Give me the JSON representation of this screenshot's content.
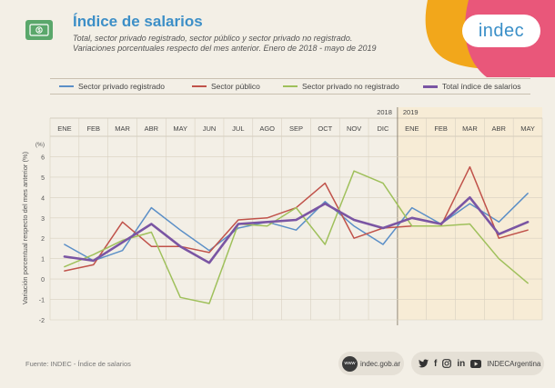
{
  "header": {
    "icon": "money-bill-icon",
    "title": "Índice de salarios",
    "subtitle_1": "Total, sector privado registrado, sector público y sector privado no registrado.",
    "subtitle_2": "Variaciones porcentuales respecto del mes anterior. Enero de 2018 - mayo de 2019"
  },
  "logo": {
    "text": "indec"
  },
  "colors": {
    "background": "#f3efe6",
    "highlight_2019": "#f7ecd6",
    "privado_registrado": "#5b8fc7",
    "publico": "#c0524a",
    "no_registrado": "#9fc05b",
    "total": "#7a55a3",
    "logo_orange": "#f2a71b",
    "logo_pink": "#e9577a",
    "title_blue": "#3d8fc7"
  },
  "footer": {
    "source": "Fuente: INDEC - Índice de salarios",
    "website": "indec.gob.ar",
    "www_label": "www",
    "social_handle": "INDECArgentina",
    "social_icons": [
      "twitter-icon",
      "facebook-icon",
      "instagram-icon",
      "linkedin-icon",
      "youtube-icon"
    ]
  },
  "chart_data": {
    "type": "line",
    "title": "",
    "ylabel": "Variación porcentual respecto del mes anterior (%)",
    "xlabel": "",
    "ylim": [
      -2,
      7
    ],
    "yticks": [
      -2,
      -1,
      0,
      1,
      2,
      3,
      4,
      5,
      6
    ],
    "ytick_labels": [
      "-2",
      "-1",
      "0",
      "1",
      "2",
      "3",
      "4",
      "5",
      "6",
      "(%)"
    ],
    "years": [
      {
        "label": "2018",
        "last_month_index": 11
      },
      {
        "label": "2019",
        "first_month_index": 12
      }
    ],
    "categories": [
      "ENE",
      "FEB",
      "MAR",
      "ABR",
      "MAY",
      "JUN",
      "JUL",
      "AGO",
      "SEP",
      "OCT",
      "NOV",
      "DIC",
      "ENE",
      "FEB",
      "MAR",
      "ABR",
      "MAY"
    ],
    "highlight_from_index": 12,
    "grid": true,
    "legend_position": "top",
    "series": [
      {
        "name": "Sector privado registrado",
        "color": "#5b8fc7",
        "values": [
          1.7,
          0.9,
          1.4,
          3.5,
          2.4,
          1.4,
          2.5,
          2.8,
          2.4,
          3.8,
          2.6,
          1.7,
          3.5,
          2.7,
          3.7,
          2.8,
          4.2
        ]
      },
      {
        "name": "Sector público",
        "color": "#c0524a",
        "values": [
          0.4,
          0.7,
          2.8,
          1.6,
          1.6,
          1.3,
          2.9,
          3.0,
          3.5,
          4.7,
          2.0,
          2.5,
          2.6,
          2.6,
          5.5,
          2.0,
          2.4
        ]
      },
      {
        "name": "Sector privado no registrado",
        "color": "#9fc05b",
        "values": [
          0.6,
          1.2,
          1.9,
          2.3,
          -0.9,
          -1.2,
          2.7,
          2.6,
          3.5,
          1.7,
          5.3,
          4.7,
          2.6,
          2.6,
          2.7,
          1.0,
          -0.2
        ]
      },
      {
        "name": "Total índice de salarios",
        "color": "#7a55a3",
        "values": [
          1.1,
          0.9,
          1.8,
          2.7,
          1.6,
          0.8,
          2.7,
          2.8,
          2.9,
          3.7,
          2.9,
          2.5,
          3.0,
          2.7,
          4.0,
          2.2,
          2.8
        ]
      }
    ]
  }
}
